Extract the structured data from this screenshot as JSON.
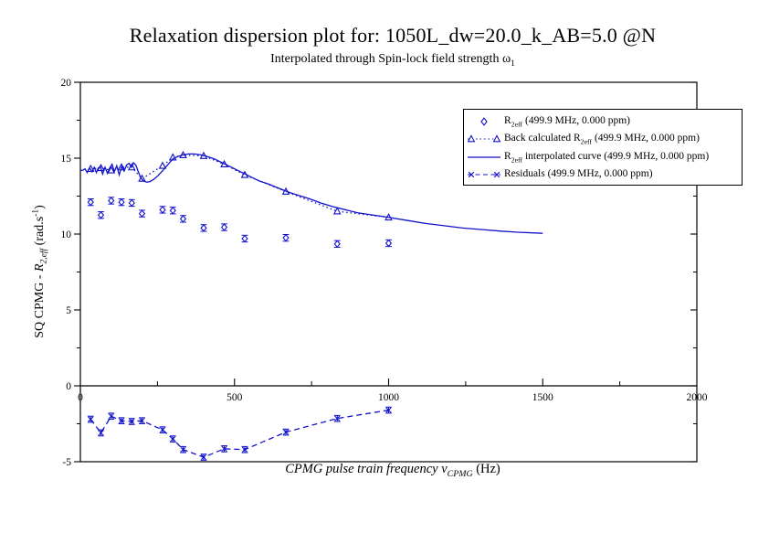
{
  "colors": {
    "series": "#1111cc",
    "axis": "#000000",
    "background": "#ffffff",
    "text": "#000000"
  },
  "header": {
    "title": "Relaxation dispersion plot for: 1050L_dw=20.0_k_AB=5.0 @N",
    "subtitle": {
      "pre": "Interpolated through Spin-lock field strength ω",
      "sub": "1"
    }
  },
  "chart_data": {
    "type": "line",
    "title": "Relaxation dispersion plot for: 1050L_dw=20.0_k_AB=5.0 @N",
    "subtitle": {
      "pre": "Interpolated through Spin-lock field strength ω",
      "sub": "1"
    },
    "xlabel": {
      "pre": "CPMG pulse train frequency ν",
      "sub": "CPMG",
      "post": " (Hz)"
    },
    "ylabel": {
      "pre": "SQ CPMG - ",
      "it": "R",
      "sub": "2,eff",
      "mid": " (rad.s",
      "sup": "-1",
      "post": ")"
    },
    "xlim": [
      0,
      2000
    ],
    "ylim": [
      -5,
      20
    ],
    "x_ticks_major": [
      0,
      500,
      1000,
      1500,
      2000
    ],
    "x_ticks_minor": [
      250,
      750,
      1250,
      1750
    ],
    "y_ticks_major": [
      -5,
      0,
      5,
      10,
      15,
      20
    ],
    "y_ticks_minor": [
      -2.5,
      2.5,
      7.5,
      12.5,
      17.5
    ],
    "zero_axis": true,
    "grid": false,
    "legend_position": "upper right",
    "series": [
      {
        "name": "R2eff (499.9 MHz, 0.000 ppm)",
        "type": "scatter",
        "marker": "diamond",
        "linestyle": "none",
        "yerr": 0.22,
        "x": [
          33.3,
          66.7,
          100,
          133.3,
          166.7,
          200,
          266.7,
          300,
          333.3,
          400,
          466.7,
          533.3,
          666.7,
          833.3,
          1000
        ],
        "y": [
          12.1,
          11.25,
          12.2,
          12.1,
          12.05,
          11.35,
          11.6,
          11.55,
          11.0,
          10.4,
          10.45,
          9.7,
          9.75,
          9.35,
          9.4
        ]
      },
      {
        "name": "Back calculated R2eff (499.9 MHz, 0.000 ppm)",
        "type": "line-scatter",
        "marker": "triangle",
        "linestyle": "dotted",
        "x": [
          33.3,
          66.7,
          100,
          133.3,
          166.7,
          200,
          266.7,
          300,
          333.3,
          400,
          466.7,
          533.3,
          666.7,
          833.3,
          1000
        ],
        "y": [
          14.3,
          14.35,
          14.2,
          14.4,
          14.4,
          13.65,
          14.5,
          15.05,
          15.2,
          15.15,
          14.6,
          13.9,
          12.8,
          11.5,
          11.1
        ]
      },
      {
        "name": "R2eff interpolated curve (499.9 MHz, 0.000 ppm)",
        "type": "line",
        "marker": "none",
        "linestyle": "solid",
        "x": [
          0,
          8,
          15,
          22,
          30,
          38,
          45,
          52,
          58,
          65,
          72,
          80,
          88,
          95,
          103,
          110,
          118,
          126,
          134,
          142,
          150,
          158,
          166,
          172,
          180,
          188,
          196,
          205,
          215,
          225,
          238,
          252,
          268,
          285,
          300,
          315,
          330,
          350,
          370,
          390,
          410,
          435,
          460,
          490,
          520,
          550,
          580,
          610,
          640,
          670,
          700,
          740,
          780,
          820,
          860,
          900,
          950,
          1000,
          1060,
          1120,
          1180,
          1240,
          1300,
          1360,
          1420,
          1500
        ],
        "y": [
          14.2,
          14.2,
          14.3,
          14.05,
          14.35,
          14.1,
          14.4,
          14.05,
          14.35,
          14.45,
          13.95,
          14.4,
          14.0,
          14.35,
          14.6,
          14.1,
          14.5,
          13.9,
          14.45,
          14.15,
          14.55,
          14.65,
          14.4,
          14.7,
          14.55,
          14.1,
          13.7,
          13.5,
          13.42,
          13.45,
          13.6,
          13.85,
          14.2,
          14.6,
          14.95,
          15.1,
          15.2,
          15.28,
          15.28,
          15.22,
          15.12,
          14.95,
          14.7,
          14.4,
          14.1,
          13.8,
          13.5,
          13.3,
          13.05,
          12.8,
          12.6,
          12.35,
          12.05,
          11.8,
          11.6,
          11.4,
          11.25,
          11.1,
          10.9,
          10.7,
          10.55,
          10.4,
          10.3,
          10.2,
          10.12,
          10.05
        ]
      },
      {
        "name": "Residuals (499.9 MHz, 0.000 ppm)",
        "type": "line-scatter",
        "marker": "x",
        "linestyle": "dashed",
        "yerr": 0.2,
        "x": [
          33.3,
          66.7,
          100,
          133.3,
          166.7,
          200,
          266.7,
          300,
          333.3,
          400,
          466.7,
          533.3,
          666.7,
          833.3,
          1000
        ],
        "y": [
          -2.2,
          -3.1,
          -2.0,
          -2.3,
          -2.35,
          -2.3,
          -2.9,
          -3.5,
          -4.2,
          -4.7,
          -4.15,
          -4.2,
          -3.05,
          -2.15,
          -1.6
        ]
      }
    ]
  },
  "legend": {
    "items": [
      {
        "marker": "diamond",
        "pre": "R",
        "sub": "2eff",
        "post": " (499.9 MHz, 0.000 ppm)"
      },
      {
        "marker": "triangle-dotted",
        "pre": "Back calculated R",
        "sub": "2eff",
        "post": " (499.9 MHz, 0.000 ppm)"
      },
      {
        "marker": "solid-line",
        "pre": "R",
        "sub": "2eff",
        "post": " interpolated curve (499.9 MHz, 0.000 ppm)"
      },
      {
        "marker": "x-dashed",
        "pre": "Residuals (499.9 MHz, 0.000 ppm)",
        "sub": "",
        "post": ""
      }
    ]
  }
}
